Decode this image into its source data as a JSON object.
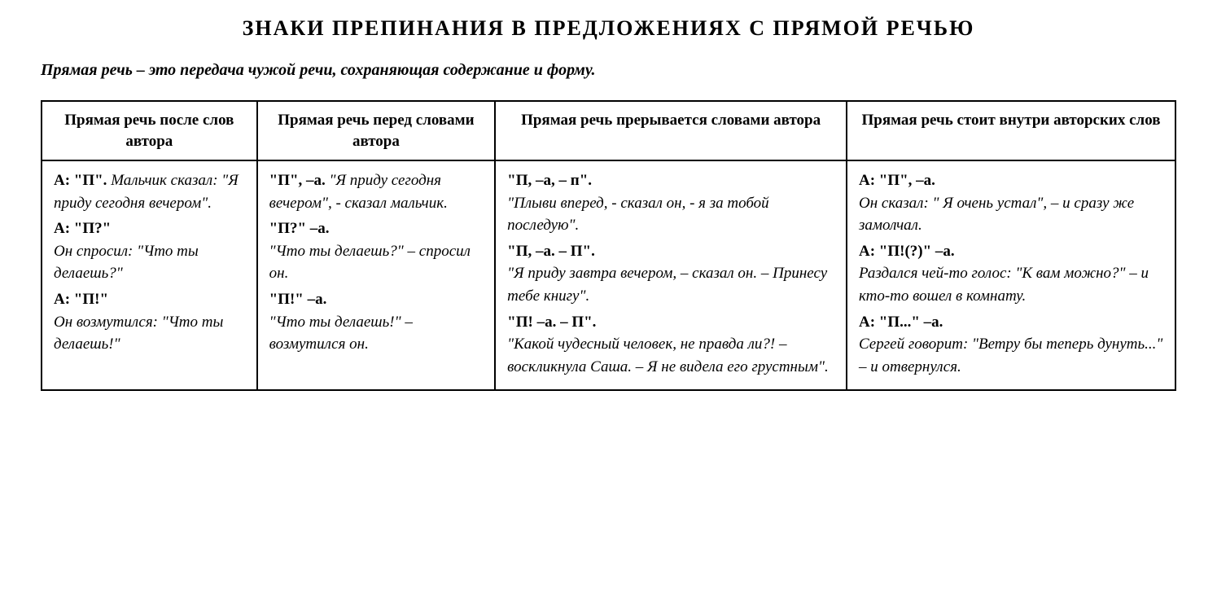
{
  "title": "ЗНАКИ ПРЕПИНАНИЯ В ПРЕДЛОЖЕНИЯХ С ПРЯМОЙ РЕЧЬЮ",
  "definition": "Прямая речь – это передача чужой речи, сохраняющая содержание и форму.",
  "columns": [
    {
      "header": "Прямая речь после слов автора",
      "entries": [
        {
          "pattern": "А: \"П\".",
          "example": "Мальчик сказал: \"Я приду сегодня вечером\"."
        },
        {
          "pattern": "А: \"П?\"",
          "example": "Он спросил: \"Что ты делаешь?\""
        },
        {
          "pattern": "А: \"П!\"",
          "example": "Он возмутился: \"Что ты делаешь!\""
        }
      ]
    },
    {
      "header": "Прямая речь перед словами автора",
      "entries": [
        {
          "pattern": "\"П\", –а.",
          "example": "\"Я приду сегодня вечером\", - сказал мальчик."
        },
        {
          "pattern": "\"П?\" –а.",
          "example": "\"Что ты делаешь?\" – спросил он."
        },
        {
          "pattern": "\"П!\" –а.",
          "example": "\"Что ты делаешь!\" – возмутился он."
        }
      ]
    },
    {
      "header": "Прямая речь прерывается словами автора",
      "entries": [
        {
          "pattern": "\"П, –а, – п\".",
          "example": "\"Плыви вперед, - сказал он, - я за тобой последую\"."
        },
        {
          "pattern": "\"П, –а. – П\".",
          "example": "\"Я приду завтра вечером, – сказал он. – Принесу тебе книгу\"."
        },
        {
          "pattern": "\"П! –а. – П\".",
          "example": "\"Какой чудесный человек, не правда ли?! – восклик­нула Саша. – Я не видела его грустным\"."
        }
      ]
    },
    {
      "header": "Прямая речь стоит внутри авторских слов",
      "entries": [
        {
          "pattern": "А: \"П\", –а.",
          "example": "Он сказал: \" Я очень устал\", – и сразу же замолчал."
        },
        {
          "pattern": "А: \"П!(?)\" –а.",
          "example": "Раздался чей-то голос: \"К вам можно?\" – и кто-то вошел в комнату."
        },
        {
          "pattern": "А: \"П...\" –а.",
          "example": "Сергей говорит: \"Ветру бы теперь дунуть...\" – и отвернулся."
        }
      ]
    }
  ],
  "styles": {
    "background_color": "#ffffff",
    "text_color": "#000000",
    "border_color": "#000000",
    "font_family": "Times New Roman",
    "title_fontsize": 26,
    "definition_fontsize": 20,
    "header_fontsize": 19,
    "cell_fontsize": 19
  }
}
